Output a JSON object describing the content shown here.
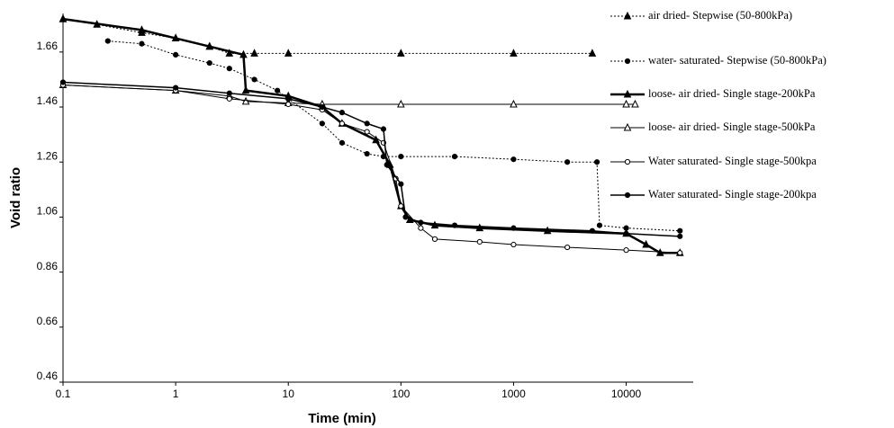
{
  "chart_data": {
    "type": "line",
    "x_label": "Time (min)",
    "y_label": "Void ratio",
    "xlim": [
      0.1,
      50000
    ],
    "ylim": [
      0.46,
      1.8
    ],
    "log_x": true,
    "xticks": [
      0.1,
      1,
      10,
      100,
      1000,
      10000
    ],
    "yticks": [
      0.46,
      0.66,
      0.86,
      1.06,
      1.26,
      1.46,
      1.66
    ],
    "legend": "right",
    "series": [
      {
        "name": "air dried- Stepwise (50-800kPa)",
        "color": "#000000",
        "marker": "triangle",
        "filled": true,
        "dashed": true,
        "width": 1,
        "x": [
          0.1,
          0.2,
          0.5,
          1,
          2,
          3,
          5,
          10,
          100,
          1000,
          5000
        ],
        "values": [
          1.78,
          1.76,
          1.73,
          1.71,
          1.68,
          1.655,
          1.655,
          1.655,
          1.655,
          1.655,
          1.655
        ]
      },
      {
        "name": "water- saturated- Stepwise (50-800kPa)",
        "color": "#000000",
        "marker": "circle",
        "filled": true,
        "dashed": true,
        "width": 1,
        "x": [
          0.25,
          0.5,
          1,
          2,
          3,
          5,
          8,
          10,
          20,
          30,
          50,
          70,
          100,
          300,
          1000,
          3000,
          5500,
          5800,
          10000,
          30000
        ],
        "values": [
          1.7,
          1.69,
          1.65,
          1.62,
          1.6,
          1.56,
          1.52,
          1.49,
          1.4,
          1.33,
          1.29,
          1.28,
          1.28,
          1.28,
          1.27,
          1.26,
          1.26,
          1.03,
          1.02,
          1.01
        ]
      },
      {
        "name": "loose- air dried- Single stage-200kPa",
        "color": "#000000",
        "marker": "triangle",
        "filled": true,
        "dashed": false,
        "width": 2.5,
        "x": [
          0.1,
          0.5,
          1,
          2,
          4,
          4.2,
          10,
          20,
          30,
          60,
          80,
          100,
          120,
          200,
          500,
          2000,
          10000,
          15000,
          20000,
          30000
        ],
        "values": [
          1.78,
          1.74,
          1.71,
          1.68,
          1.65,
          1.52,
          1.5,
          1.46,
          1.4,
          1.34,
          1.25,
          1.1,
          1.05,
          1.03,
          1.02,
          1.01,
          1.0,
          0.96,
          0.93,
          0.93
        ]
      },
      {
        "name": "loose- air dried- Single stage-500kPa",
        "color": "#000000",
        "marker": "triangle",
        "filled": false,
        "dashed": false,
        "width": 1,
        "x": [
          0.1,
          1,
          3,
          4.2,
          10,
          20,
          100,
          1000,
          10000,
          12000
        ],
        "values": [
          1.54,
          1.52,
          1.5,
          1.48,
          1.475,
          1.47,
          1.47,
          1.47,
          1.47,
          1.47
        ]
      },
      {
        "name": "Water saturated- Single stage-500kpa",
        "color": "#000000",
        "marker": "circle",
        "filled": false,
        "dashed": false,
        "width": 1,
        "x": [
          0.1,
          1,
          3,
          10,
          20,
          30,
          50,
          70,
          90,
          100,
          150,
          200,
          500,
          1000,
          3000,
          10000,
          30000
        ],
        "values": [
          1.54,
          1.52,
          1.49,
          1.47,
          1.45,
          1.4,
          1.37,
          1.33,
          1.2,
          1.1,
          1.02,
          0.98,
          0.97,
          0.96,
          0.95,
          0.94,
          0.93
        ]
      },
      {
        "name": "Water saturated- Single stage-200kpa",
        "color": "#000000",
        "marker": "circle",
        "filled": true,
        "dashed": false,
        "width": 1.5,
        "x": [
          0.1,
          1,
          3,
          10,
          20,
          30,
          50,
          70,
          75,
          100,
          110,
          150,
          300,
          1000,
          5000,
          10000,
          30000
        ],
        "values": [
          1.55,
          1.53,
          1.51,
          1.49,
          1.46,
          1.44,
          1.4,
          1.38,
          1.25,
          1.18,
          1.06,
          1.04,
          1.03,
          1.02,
          1.01,
          1.0,
          0.99
        ]
      }
    ]
  }
}
